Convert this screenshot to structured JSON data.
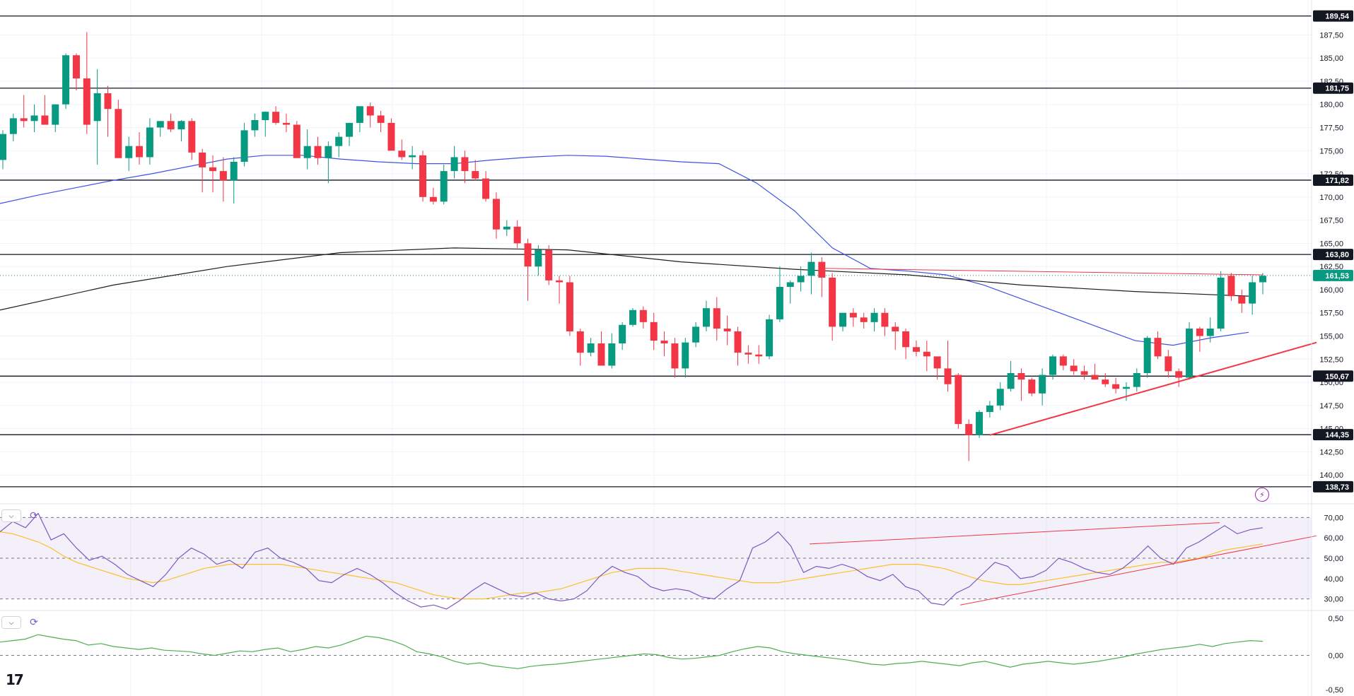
{
  "chart_data": [
    {
      "type": "candlestick",
      "title": "",
      "y_axis": {
        "ticks": [
          "187,50",
          "185,00",
          "182,50",
          "180,00",
          "177,50",
          "175,00",
          "172,50",
          "170,00",
          "167,50",
          "165,00",
          "162,50",
          "160,00",
          "157,50",
          "155,00",
          "152,50",
          "150,00",
          "147,50",
          "145,00",
          "142,50",
          "140,00"
        ],
        "ylim": [
          137.5,
          190.5
        ]
      },
      "horizontal_levels": [
        {
          "value": 189.54,
          "label": "189,54"
        },
        {
          "value": 181.75,
          "label": "181,75"
        },
        {
          "value": 171.82,
          "label": "171,82"
        },
        {
          "value": 163.8,
          "label": "163,80"
        },
        {
          "value": 150.67,
          "label": "150,67"
        },
        {
          "value": 144.35,
          "label": "144,35"
        },
        {
          "value": 138.73,
          "label": "138,73"
        }
      ],
      "current_price": {
        "value": 161.53,
        "label": "161,53",
        "color": "#089981"
      },
      "ohlc": [
        [
          174,
          177.2,
          173,
          176.8
        ],
        [
          176.8,
          179,
          176,
          178.5
        ],
        [
          178.5,
          181,
          177.5,
          178.2
        ],
        [
          178.2,
          180,
          177,
          178.8
        ],
        [
          178.8,
          181,
          178,
          177.8
        ],
        [
          177.8,
          180,
          177,
          180
        ],
        [
          180,
          185.5,
          179.5,
          185.3
        ],
        [
          185.3,
          185.5,
          181.5,
          182.8
        ],
        [
          182.8,
          187.8,
          176.8,
          177.8
        ],
        [
          178.2,
          183.8,
          173.5,
          181.2
        ],
        [
          181.2,
          182,
          176.5,
          179.5
        ],
        [
          179.5,
          180.5,
          174.3,
          174.2
        ],
        [
          174.2,
          176.5,
          172.8,
          175.5
        ],
        [
          175.5,
          177,
          173.5,
          174.3
        ],
        [
          174.3,
          178.5,
          173.5,
          177.5
        ],
        [
          177.5,
          178,
          176.5,
          178.2
        ],
        [
          178.2,
          179,
          177,
          177.3
        ],
        [
          177.3,
          178.3,
          176,
          178.2
        ],
        [
          178.2,
          178.5,
          174,
          174.8
        ],
        [
          174.8,
          175.2,
          170.5,
          173.2
        ],
        [
          173.2,
          174.5,
          170.5,
          172.8
        ],
        [
          172.8,
          174.3,
          169.5,
          171.8
        ],
        [
          171.8,
          174.3,
          169.3,
          173.8
        ],
        [
          173.8,
          178,
          173.3,
          177.2
        ],
        [
          177.2,
          179,
          176.5,
          178.3
        ],
        [
          178.3,
          179.2,
          176.5,
          179.2
        ],
        [
          179.2,
          179.8,
          177.8,
          178
        ],
        [
          178,
          179,
          177,
          177.8
        ],
        [
          177.8,
          178.2,
          174.5,
          174.2
        ],
        [
          174.2,
          177.3,
          173,
          175.5
        ],
        [
          175.5,
          176.5,
          173.5,
          174.2
        ],
        [
          174.2,
          176,
          171.5,
          175.5
        ],
        [
          175.5,
          177,
          174.3,
          176.5
        ],
        [
          176.5,
          178,
          175.5,
          178
        ],
        [
          178,
          179.5,
          177,
          179.8
        ],
        [
          179.8,
          180.2,
          177.5,
          178.8
        ],
        [
          178.8,
          179.3,
          177,
          178
        ],
        [
          178,
          178.5,
          175.5,
          175
        ],
        [
          175,
          176.2,
          174,
          174.3
        ],
        [
          174.3,
          175.5,
          173,
          174.5
        ],
        [
          174.5,
          175,
          169.5,
          170
        ],
        [
          170,
          171,
          169.2,
          169.5
        ],
        [
          169.5,
          173.5,
          169.2,
          172.8
        ],
        [
          172.8,
          175.5,
          172,
          174.3
        ],
        [
          174.3,
          175,
          171.5,
          172.8
        ],
        [
          172.8,
          174,
          171.8,
          172
        ],
        [
          172,
          172.8,
          169.5,
          169.8
        ],
        [
          169.8,
          170.5,
          165.5,
          166.5
        ],
        [
          166.5,
          167.5,
          165.8,
          166.8
        ],
        [
          166.8,
          167.5,
          164.5,
          165
        ],
        [
          165,
          165.5,
          158.8,
          162.5
        ],
        [
          162.5,
          164.8,
          161.5,
          164.3
        ],
        [
          164.3,
          164.8,
          160.5,
          161
        ],
        [
          161,
          161.5,
          158.5,
          160.8
        ],
        [
          160.8,
          161.5,
          155,
          155.5
        ],
        [
          155.5,
          155.8,
          151.8,
          153.2
        ],
        [
          153.2,
          154.8,
          152.8,
          154.2
        ],
        [
          154.2,
          155.5,
          152.2,
          151.8
        ],
        [
          151.8,
          155.3,
          151.5,
          154.2
        ],
        [
          154.2,
          156.5,
          153.5,
          156.2
        ],
        [
          156.2,
          158,
          156,
          157.8
        ],
        [
          157.8,
          158.2,
          155.8,
          156.5
        ],
        [
          156.5,
          157.5,
          153.5,
          154.5
        ],
        [
          154.5,
          155.5,
          152.8,
          154.2
        ],
        [
          154.2,
          154.8,
          150.5,
          151.5
        ],
        [
          151.5,
          154.8,
          150.5,
          154.3
        ],
        [
          154.3,
          156.5,
          153.8,
          156
        ],
        [
          156,
          158.8,
          155.5,
          158
        ],
        [
          158,
          159.2,
          154.5,
          155.8
        ],
        [
          155.8,
          157.2,
          154,
          155.5
        ],
        [
          155.5,
          156,
          151.8,
          153.2
        ],
        [
          153.2,
          154,
          152,
          153
        ],
        [
          153,
          154,
          152,
          152.8
        ],
        [
          152.8,
          157.3,
          152.5,
          156.8
        ],
        [
          156.8,
          162.5,
          156.5,
          160.3
        ],
        [
          160.3,
          161,
          158.5,
          160.8
        ],
        [
          160.8,
          162.5,
          159.8,
          161.5
        ],
        [
          161.5,
          164,
          159.5,
          163
        ],
        [
          163,
          163.5,
          159.2,
          161.3
        ],
        [
          161.3,
          161.8,
          154.5,
          156
        ],
        [
          156,
          157.3,
          155.5,
          157.5
        ],
        [
          157.5,
          158,
          156,
          157
        ],
        [
          157,
          157.5,
          155.8,
          156.5
        ],
        [
          156.5,
          158,
          155.5,
          157.5
        ],
        [
          157.5,
          158,
          155,
          156
        ],
        [
          156,
          156.5,
          153.5,
          155.5
        ],
        [
          155.5,
          155.8,
          152.5,
          153.8
        ],
        [
          153.8,
          154.5,
          152.8,
          153.3
        ],
        [
          153.3,
          154.5,
          151.2,
          152.8
        ],
        [
          152.8,
          152.5,
          150.3,
          151.5
        ],
        [
          151.5,
          154.5,
          149,
          149.8
        ],
        [
          150.8,
          151,
          145,
          145.5
        ],
        [
          145.5,
          146,
          141.5,
          144.3
        ],
        [
          144.3,
          147,
          144,
          146.8
        ],
        [
          146.8,
          148,
          146.2,
          147.5
        ],
        [
          147.5,
          150,
          147,
          149.3
        ],
        [
          149.3,
          152.3,
          149,
          151
        ],
        [
          151,
          151.5,
          148,
          150.3
        ],
        [
          150.3,
          150.5,
          148.5,
          148.8
        ],
        [
          148.8,
          151.5,
          147.5,
          150.8
        ],
        [
          150.8,
          153,
          150.3,
          152.8
        ],
        [
          152.8,
          153,
          151.3,
          151.8
        ],
        [
          151.8,
          152.5,
          150.8,
          151.2
        ],
        [
          151.2,
          151.8,
          150.3,
          150.8
        ],
        [
          150.8,
          152,
          150.3,
          150.3
        ],
        [
          150.3,
          151,
          149.5,
          149.8
        ],
        [
          149.8,
          150.5,
          148.8,
          149.3
        ],
        [
          149.3,
          150,
          148,
          149.5
        ],
        [
          149.5,
          151.5,
          149,
          151
        ],
        [
          151,
          155,
          150.5,
          154.8
        ],
        [
          154.8,
          155.5,
          152.5,
          152.8
        ],
        [
          152.8,
          153.5,
          150.5,
          151.2
        ],
        [
          151.2,
          151.5,
          149.5,
          150.5
        ],
        [
          150.5,
          156.5,
          150.3,
          155.8
        ],
        [
          155.8,
          156,
          153.3,
          155
        ],
        [
          155,
          157,
          154.3,
          155.8
        ],
        [
          155.8,
          162,
          155.5,
          161.3
        ],
        [
          161.5,
          161.8,
          158.8,
          159.3
        ],
        [
          159.3,
          160,
          157.5,
          158.5
        ],
        [
          158.5,
          161.5,
          157.3,
          160.8
        ],
        [
          160.8,
          161.8,
          159.5,
          161.5
        ]
      ],
      "ma_blue": [
        169.3,
        170.2,
        171,
        171.8,
        172.5,
        173.3,
        174.1,
        174.5,
        174.5,
        174.1,
        173.8,
        173.6,
        173.6,
        174,
        174.3,
        174.5,
        174.4,
        174.1,
        173.8,
        173.6,
        171.5,
        168.5,
        164.5,
        162.3,
        162,
        161.6,
        160.5,
        159,
        157.5,
        156,
        154.5,
        154,
        154.8,
        155.4
      ],
      "ma_black": [
        157.8,
        160.5,
        162.5,
        164,
        164.5,
        164.3,
        163,
        162.2,
        161.6,
        160.5,
        159.8,
        159.3
      ],
      "trendlines": [
        {
          "name": "support",
          "from": [
            144.3
          ],
          "to": [
            154.3
          ],
          "color": "#f23645"
        },
        {
          "name": "resistance",
          "from": [
            162.3
          ],
          "to": [
            161.6
          ],
          "color": "#f23645"
        }
      ]
    },
    {
      "type": "line",
      "title": "",
      "y_axis": {
        "ticks": [
          "70,00",
          "60,00",
          "50,00",
          "40,00",
          "30,00"
        ],
        "ylim": [
          25,
          75
        ]
      },
      "band": [
        30,
        70
      ],
      "rsi": [
        63,
        68,
        65,
        72,
        59,
        62,
        55,
        49,
        51,
        47,
        42,
        39,
        36,
        42,
        50,
        55,
        52,
        47,
        49,
        45,
        53,
        55,
        50,
        48,
        45,
        39,
        38,
        42,
        45,
        42,
        38,
        33,
        29,
        26,
        27,
        25,
        29,
        34,
        38,
        35,
        32,
        31,
        33,
        30,
        29,
        30,
        34,
        41,
        46,
        43,
        41,
        36,
        34,
        35,
        34,
        31,
        30,
        35,
        39,
        55,
        58,
        63,
        56,
        43,
        46,
        45,
        47,
        45,
        41,
        39,
        42,
        36,
        34,
        28,
        27,
        33,
        36,
        42,
        48,
        46,
        40,
        41,
        44,
        50,
        48,
        45,
        43,
        42,
        45,
        50,
        56,
        50,
        47,
        55,
        58,
        62,
        66,
        62,
        64,
        65
      ],
      "rsi_ma": [
        63,
        62,
        60,
        58,
        55,
        51,
        48,
        46,
        44,
        42,
        40,
        39,
        38,
        39,
        41,
        43,
        45,
        46,
        47,
        47,
        47,
        47,
        47,
        46,
        45,
        44,
        43,
        42,
        41,
        40,
        39,
        38,
        36,
        34,
        32,
        31,
        30,
        30,
        30,
        31,
        32,
        33,
        33,
        34,
        35,
        37,
        39,
        41,
        43,
        44,
        45,
        45,
        45,
        44,
        43,
        42,
        41,
        40,
        39,
        38,
        38,
        38,
        39,
        40,
        41,
        42,
        43,
        44,
        45,
        46,
        47,
        47,
        47,
        46,
        45,
        43,
        41,
        39,
        38,
        37,
        37,
        38,
        39,
        40,
        41,
        42,
        43,
        44,
        45,
        46,
        47,
        48,
        48,
        49,
        50,
        52,
        54,
        55,
        56,
        57
      ],
      "divergence_lines": [
        {
          "name": "rsi-top",
          "from": 57,
          "to": 67.5
        },
        {
          "name": "rsi-bottom",
          "from": 27,
          "to": 61
        }
      ]
    },
    {
      "type": "line",
      "title": "",
      "y_axis": {
        "ticks": [
          "0,50",
          "0,00",
          "-0,50"
        ],
        "ylim": [
          -0.55,
          0.55
        ]
      },
      "zero_line": 0,
      "values": [
        0.18,
        0.2,
        0.22,
        0.28,
        0.25,
        0.22,
        0.2,
        0.14,
        0.16,
        0.12,
        0.1,
        0.08,
        0.1,
        0.07,
        0.06,
        0.05,
        0.02,
        0.0,
        0.03,
        0.06,
        0.05,
        0.08,
        0.1,
        0.05,
        0.08,
        0.12,
        0.1,
        0.14,
        0.2,
        0.26,
        0.24,
        0.2,
        0.14,
        0.05,
        0.02,
        -0.02,
        -0.08,
        -0.12,
        -0.1,
        -0.14,
        -0.16,
        -0.18,
        -0.15,
        -0.13,
        -0.12,
        -0.1,
        -0.08,
        -0.06,
        -0.04,
        -0.02,
        0.0,
        0.02,
        0.01,
        -0.03,
        -0.05,
        -0.04,
        -0.02,
        0.0,
        0.05,
        0.09,
        0.12,
        0.1,
        0.05,
        0.02,
        0.0,
        -0.02,
        -0.04,
        -0.06,
        -0.09,
        -0.12,
        -0.13,
        -0.11,
        -0.1,
        -0.08,
        -0.1,
        -0.12,
        -0.14,
        -0.1,
        -0.08,
        -0.12,
        -0.16,
        -0.12,
        -0.1,
        -0.08,
        -0.1,
        -0.12,
        -0.1,
        -0.08,
        -0.05,
        -0.02,
        0.02,
        0.05,
        0.08,
        0.1,
        0.12,
        0.15,
        0.12,
        0.16,
        0.18,
        0.2,
        0.19
      ]
    }
  ]
}
